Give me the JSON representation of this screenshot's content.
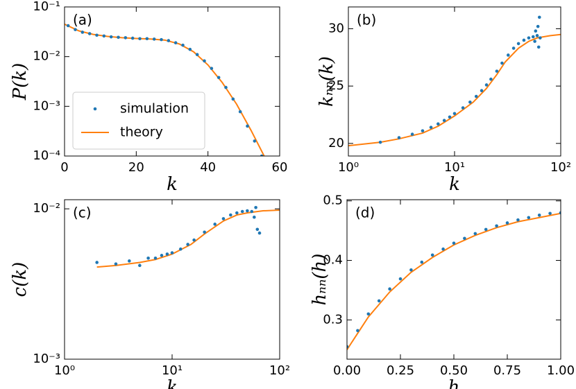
{
  "chart_data": [
    {
      "type": "scatter",
      "annotation": "(a)",
      "xlabel": "k",
      "ylabel": "P(k)",
      "xlim": [
        0,
        60
      ],
      "xticks": [
        0,
        20,
        40,
        60
      ],
      "xscale": "linear",
      "ylim": [
        0.0001,
        0.1
      ],
      "yscale": "log",
      "yticks": [
        {
          "value": 0.0001,
          "label": "10⁻⁴"
        },
        {
          "value": 0.001,
          "label": "10⁻³"
        },
        {
          "value": 0.01,
          "label": "10⁻²"
        },
        {
          "value": 0.1,
          "label": "10⁻¹"
        }
      ],
      "legend": "lower left",
      "series": [
        {
          "name": "simulation",
          "type": "scatter",
          "color": "#1f77b4",
          "x": [
            1,
            3,
            5,
            7,
            9,
            11,
            13,
            15,
            17,
            19,
            21,
            23,
            25,
            27,
            29,
            31,
            33,
            35,
            37,
            39,
            41,
            43,
            45,
            47,
            49,
            51,
            53,
            55
          ],
          "values": [
            0.042,
            0.035,
            0.031,
            0.029,
            0.027,
            0.026,
            0.025,
            0.0245,
            0.024,
            0.0235,
            0.023,
            0.023,
            0.0225,
            0.022,
            0.021,
            0.019,
            0.017,
            0.014,
            0.011,
            0.0082,
            0.0058,
            0.0038,
            0.0024,
            0.0014,
            0.00078,
            0.0004,
            0.0002,
            0.0001
          ]
        },
        {
          "name": "theory",
          "type": "line",
          "color": "#ff7f0e",
          "x": [
            0,
            4,
            8,
            12,
            16,
            20,
            24,
            28,
            32,
            36,
            40,
            44,
            48,
            52,
            56
          ],
          "values": [
            0.045,
            0.033,
            0.028,
            0.0255,
            0.024,
            0.0232,
            0.0226,
            0.0215,
            0.018,
            0.0125,
            0.0068,
            0.003,
            0.0011,
            0.00033,
            9e-05
          ]
        }
      ]
    },
    {
      "type": "scatter",
      "annotation": "(b)",
      "xlabel": "k",
      "ylabel": "kₙₙ(k)",
      "xlim": [
        1,
        100
      ],
      "xscale": "log",
      "xticks": [
        {
          "value": 1,
          "label": "10⁰"
        },
        {
          "value": 10,
          "label": "10¹"
        },
        {
          "value": 100,
          "label": "10²"
        }
      ],
      "ylim": [
        18.9,
        31.9
      ],
      "yscale": "linear",
      "yticks": [
        20,
        25,
        30
      ],
      "series": [
        {
          "type": "scatter",
          "color": "#1f77b4",
          "x": [
            2,
            3,
            4,
            5,
            6,
            7,
            8,
            9,
            10,
            12,
            14,
            16,
            18,
            20,
            22,
            25,
            28,
            32,
            36,
            40,
            45,
            50,
            55,
            57,
            58,
            60,
            61,
            62,
            63,
            64
          ],
          "values": [
            20.1,
            20.5,
            20.8,
            21.1,
            21.4,
            21.7,
            22.0,
            22.3,
            22.6,
            23.1,
            23.6,
            24.1,
            24.6,
            25.1,
            25.6,
            26.3,
            27.0,
            27.7,
            28.3,
            28.7,
            29.0,
            29.2,
            29.3,
            28.9,
            29.8,
            29.4,
            30.2,
            28.4,
            31.0,
            29.2
          ]
        },
        {
          "type": "line",
          "color": "#ff7f0e",
          "x": [
            1,
            2,
            3,
            5,
            7,
            10,
            15,
            20,
            25,
            30,
            40,
            50,
            60,
            80,
            100
          ],
          "values": [
            19.8,
            20.1,
            20.4,
            20.9,
            21.5,
            22.4,
            23.6,
            24.8,
            26.0,
            27.1,
            28.3,
            28.9,
            29.2,
            29.4,
            29.5
          ]
        }
      ]
    },
    {
      "type": "scatter",
      "annotation": "(c)",
      "xlabel": "k",
      "ylabel": "c(k)",
      "xlim": [
        1,
        100
      ],
      "xscale": "log",
      "xticks": [
        {
          "value": 1,
          "label": "10⁰"
        },
        {
          "value": 10,
          "label": "10¹"
        },
        {
          "value": 100,
          "label": "10²"
        }
      ],
      "ylim": [
        0.001,
        0.0115
      ],
      "yscale": "log",
      "yticks": [
        {
          "value": 0.001,
          "label": "10⁻³"
        },
        {
          "value": 0.01,
          "label": "10⁻²"
        }
      ],
      "series": [
        {
          "type": "scatter",
          "color": "#1f77b4",
          "x": [
            2,
            3,
            4,
            5,
            6,
            7,
            8,
            9,
            10,
            12,
            14,
            16,
            20,
            25,
            30,
            35,
            40,
            45,
            50,
            55,
            58,
            60,
            62,
            65
          ],
          "values": [
            0.0044,
            0.0043,
            0.0045,
            0.0042,
            0.0047,
            0.0047,
            0.0049,
            0.005,
            0.0051,
            0.0054,
            0.0058,
            0.0062,
            0.007,
            0.0079,
            0.0086,
            0.0091,
            0.0094,
            0.0096,
            0.0097,
            0.0096,
            0.0088,
            0.0102,
            0.0073,
            0.0069
          ]
        },
        {
          "type": "line",
          "color": "#ff7f0e",
          "x": [
            2,
            3,
            5,
            7,
            10,
            15,
            20,
            30,
            40,
            50,
            70,
            100
          ],
          "values": [
            0.0041,
            0.0042,
            0.0044,
            0.0046,
            0.005,
            0.0058,
            0.0068,
            0.0083,
            0.0091,
            0.0094,
            0.0097,
            0.0098
          ]
        }
      ]
    },
    {
      "type": "scatter",
      "annotation": "(d)",
      "xlabel": "h",
      "ylabel": "hₙₙ(h)",
      "xlim": [
        0,
        1
      ],
      "xscale": "linear",
      "xticks": [
        {
          "value": 0,
          "label": "0.00"
        },
        0.25,
        {
          "value": 0.5,
          "label": "0.50"
        },
        0.75,
        {
          "value": 1,
          "label": "1.00"
        }
      ],
      "ylim": [
        0.234,
        0.502
      ],
      "yscale": "linear",
      "yticks": [
        0.3,
        0.4,
        0.5
      ],
      "series": [
        {
          "type": "scatter",
          "color": "#1f77b4",
          "x": [
            0.0,
            0.05,
            0.1,
            0.15,
            0.2,
            0.25,
            0.3,
            0.35,
            0.4,
            0.45,
            0.5,
            0.55,
            0.6,
            0.65,
            0.7,
            0.75,
            0.8,
            0.85,
            0.9,
            0.95,
            1.0
          ],
          "values": [
            0.255,
            0.282,
            0.31,
            0.332,
            0.352,
            0.369,
            0.384,
            0.397,
            0.409,
            0.419,
            0.429,
            0.437,
            0.445,
            0.452,
            0.458,
            0.463,
            0.468,
            0.472,
            0.476,
            0.479,
            0.48
          ]
        },
        {
          "type": "line",
          "color": "#ff7f0e",
          "x": [
            0,
            0.1,
            0.2,
            0.3,
            0.4,
            0.5,
            0.6,
            0.7,
            0.8,
            0.9,
            1.0
          ],
          "values": [
            0.25,
            0.305,
            0.347,
            0.38,
            0.405,
            0.426,
            0.442,
            0.455,
            0.465,
            0.472,
            0.479
          ]
        }
      ]
    }
  ]
}
